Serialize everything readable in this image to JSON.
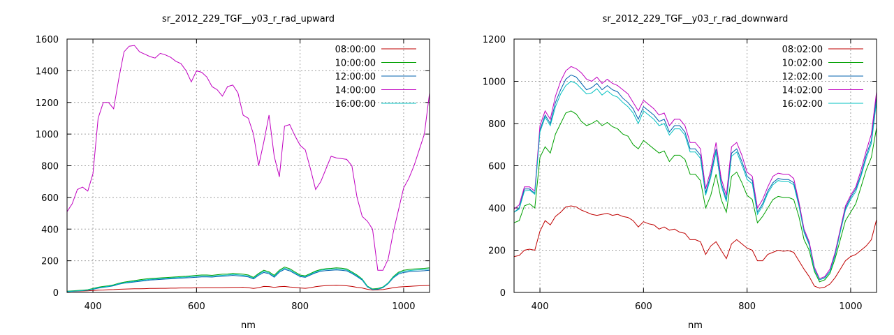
{
  "chart_data": [
    {
      "type": "line",
      "title": "sr_2012_229_TGF__y03_r_rad_upward",
      "xlabel": "nm",
      "ylabel": "",
      "xlim": [
        350,
        1050
      ],
      "ylim": [
        0,
        1600
      ],
      "xticks": [
        400,
        600,
        800,
        1000
      ],
      "yticks": [
        0,
        200,
        400,
        600,
        800,
        1000,
        1200,
        1400,
        1600
      ],
      "grid": true,
      "legend_position": "top-right",
      "x": [
        350,
        360,
        370,
        380,
        390,
        400,
        410,
        420,
        430,
        440,
        450,
        460,
        470,
        480,
        490,
        500,
        510,
        520,
        530,
        540,
        550,
        560,
        570,
        580,
        590,
        600,
        610,
        620,
        630,
        640,
        650,
        660,
        670,
        680,
        690,
        700,
        710,
        720,
        730,
        740,
        750,
        760,
        770,
        780,
        790,
        800,
        810,
        820,
        830,
        840,
        850,
        860,
        870,
        880,
        890,
        900,
        910,
        920,
        930,
        940,
        950,
        960,
        970,
        980,
        990,
        1000,
        1010,
        1020,
        1030,
        1040,
        1050
      ],
      "series": [
        {
          "name": "08:00:00",
          "color": "#bf0000",
          "values": [
            5,
            7,
            8,
            9,
            10,
            12,
            14,
            15,
            17,
            18,
            20,
            21,
            22,
            23,
            23,
            24,
            25,
            25,
            26,
            26,
            27,
            27,
            28,
            28,
            28,
            29,
            29,
            30,
            30,
            30,
            30,
            31,
            32,
            32,
            33,
            30,
            25,
            30,
            38,
            37,
            32,
            36,
            38,
            34,
            32,
            28,
            26,
            30,
            36,
            40,
            43,
            44,
            45,
            44,
            42,
            38,
            32,
            28,
            20,
            15,
            16,
            18,
            24,
            30,
            34,
            36,
            38,
            40,
            42,
            43,
            44
          ]
        },
        {
          "name": "10:00:00",
          "color": "#00a000",
          "values": [
            8,
            10,
            12,
            14,
            17,
            25,
            33,
            38,
            42,
            48,
            58,
            65,
            70,
            75,
            80,
            84,
            88,
            90,
            92,
            94,
            96,
            98,
            100,
            102,
            105,
            108,
            110,
            110,
            108,
            112,
            115,
            116,
            120,
            118,
            115,
            110,
            95,
            120,
            140,
            130,
            108,
            140,
            160,
            150,
            130,
            110,
            105,
            120,
            135,
            145,
            150,
            152,
            155,
            153,
            148,
            130,
            110,
            85,
            40,
            22,
            25,
            35,
            60,
            100,
            128,
            140,
            145,
            148,
            150,
            152,
            155
          ]
        },
        {
          "name": "12:00:00",
          "color": "#0060ad",
          "values": [
            5,
            7,
            9,
            11,
            14,
            20,
            27,
            32,
            36,
            42,
            52,
            58,
            62,
            66,
            70,
            74,
            78,
            80,
            82,
            84,
            86,
            88,
            90,
            92,
            94,
            96,
            98,
            98,
            97,
            100,
            102,
            104,
            108,
            105,
            102,
            98,
            85,
            108,
            126,
            118,
            96,
            128,
            146,
            136,
            118,
            100,
            95,
            110,
            124,
            134,
            138,
            140,
            142,
            140,
            136,
            120,
            100,
            78,
            35,
            18,
            20,
            30,
            55,
            92,
            116,
            126,
            130,
            133,
            135,
            137,
            140
          ]
        },
        {
          "name": "14:00:00",
          "color": "#c000c0",
          "values": [
            510,
            560,
            650,
            665,
            640,
            750,
            1100,
            1200,
            1200,
            1160,
            1350,
            1520,
            1555,
            1560,
            1520,
            1505,
            1490,
            1480,
            1510,
            1500,
            1485,
            1460,
            1445,
            1400,
            1330,
            1400,
            1390,
            1360,
            1300,
            1280,
            1240,
            1300,
            1310,
            1260,
            1120,
            1100,
            1000,
            800,
            950,
            1120,
            860,
            730,
            1050,
            1060,
            990,
            930,
            900,
            780,
            650,
            700,
            780,
            860,
            850,
            845,
            840,
            800,
            600,
            480,
            450,
            400,
            140,
            140,
            210,
            380,
            520,
            660,
            720,
            800,
            900,
            1000,
            1260
          ]
        },
        {
          "name": "16:00:00",
          "color": "#00c0c0",
          "values": [
            6,
            8,
            10,
            12,
            15,
            22,
            30,
            35,
            39,
            45,
            55,
            61,
            66,
            70,
            75,
            79,
            83,
            85,
            87,
            89,
            91,
            93,
            95,
            97,
            100,
            102,
            104,
            104,
            102,
            106,
            108,
            110,
            114,
            111,
            108,
            104,
            90,
            114,
            133,
            124,
            102,
            134,
            153,
            143,
            124,
            105,
            100,
            115,
            130,
            140,
            145,
            147,
            149,
            147,
            142,
            125,
            105,
            82,
            38,
            20,
            22,
            32,
            58,
            96,
            122,
            133,
            138,
            141,
            143,
            145,
            148
          ]
        }
      ]
    },
    {
      "type": "line",
      "title": "sr_2012_229_TGF__y03_r_rad_downward",
      "xlabel": "nm",
      "ylabel": "",
      "xlim": [
        350,
        1050
      ],
      "ylim": [
        0,
        1200
      ],
      "xticks": [
        400,
        600,
        800,
        1000
      ],
      "yticks": [
        0,
        200,
        400,
        600,
        800,
        1000,
        1200
      ],
      "grid": true,
      "legend_position": "top-right",
      "x": [
        350,
        360,
        370,
        380,
        390,
        400,
        410,
        420,
        430,
        440,
        450,
        460,
        470,
        480,
        490,
        500,
        510,
        520,
        530,
        540,
        550,
        560,
        570,
        580,
        590,
        600,
        610,
        620,
        630,
        640,
        650,
        660,
        670,
        680,
        690,
        700,
        710,
        720,
        730,
        740,
        750,
        760,
        770,
        780,
        790,
        800,
        810,
        820,
        830,
        840,
        850,
        860,
        870,
        880,
        890,
        900,
        910,
        920,
        930,
        940,
        950,
        960,
        970,
        980,
        990,
        1000,
        1010,
        1020,
        1030,
        1040,
        1050
      ],
      "series": [
        {
          "name": "08:02:00",
          "color": "#bf0000",
          "values": [
            170,
            175,
            200,
            205,
            200,
            290,
            340,
            320,
            360,
            380,
            405,
            410,
            405,
            390,
            380,
            370,
            365,
            370,
            375,
            365,
            370,
            360,
            355,
            340,
            310,
            335,
            325,
            320,
            300,
            310,
            295,
            300,
            285,
            280,
            250,
            250,
            240,
            180,
            220,
            240,
            200,
            160,
            230,
            250,
            230,
            210,
            200,
            150,
            150,
            180,
            190,
            200,
            195,
            198,
            190,
            150,
            110,
            75,
            30,
            20,
            25,
            40,
            70,
            110,
            150,
            170,
            180,
            200,
            220,
            250,
            345
          ]
        },
        {
          "name": "10:02:00",
          "color": "#00a000",
          "values": [
            330,
            340,
            410,
            420,
            400,
            640,
            690,
            660,
            750,
            800,
            850,
            860,
            845,
            810,
            790,
            800,
            815,
            790,
            805,
            785,
            775,
            750,
            740,
            700,
            680,
            720,
            700,
            680,
            660,
            670,
            620,
            650,
            650,
            630,
            560,
            560,
            530,
            400,
            460,
            560,
            440,
            380,
            550,
            570,
            520,
            460,
            440,
            330,
            360,
            400,
            440,
            455,
            450,
            450,
            440,
            360,
            250,
            200,
            100,
            50,
            60,
            90,
            160,
            250,
            340,
            380,
            420,
            500,
            580,
            640,
            780
          ]
        },
        {
          "name": "12:02:00",
          "color": "#0060ad",
          "values": [
            380,
            400,
            490,
            490,
            470,
            770,
            840,
            800,
            900,
            960,
            1010,
            1030,
            1020,
            990,
            960,
            970,
            990,
            960,
            980,
            960,
            950,
            920,
            900,
            870,
            820,
            880,
            860,
            840,
            810,
            820,
            760,
            790,
            790,
            760,
            680,
            680,
            650,
            470,
            560,
            680,
            520,
            440,
            660,
            680,
            620,
            550,
            530,
            380,
            420,
            480,
            520,
            540,
            535,
            535,
            520,
            420,
            290,
            230,
            110,
            60,
            70,
            100,
            180,
            290,
            400,
            450,
            490,
            560,
            650,
            720,
            930
          ]
        },
        {
          "name": "14:02:00",
          "color": "#c000c0",
          "values": [
            395,
            415,
            500,
            500,
            480,
            790,
            860,
            820,
            930,
            1000,
            1050,
            1070,
            1060,
            1040,
            1010,
            1000,
            1020,
            990,
            1010,
            990,
            980,
            960,
            940,
            900,
            860,
            910,
            890,
            870,
            840,
            850,
            790,
            820,
            820,
            790,
            710,
            710,
            680,
            490,
            580,
            710,
            540,
            460,
            690,
            710,
            650,
            570,
            550,
            400,
            440,
            500,
            550,
            565,
            560,
            560,
            540,
            430,
            300,
            240,
            120,
            65,
            75,
            110,
            190,
            300,
            410,
            460,
            500,
            580,
            670,
            750,
            950
          ]
        },
        {
          "name": "16:02:00",
          "color": "#00c0c0",
          "values": [
            380,
            395,
            480,
            485,
            465,
            760,
            830,
            790,
            880,
            940,
            980,
            1000,
            990,
            965,
            940,
            945,
            965,
            935,
            955,
            935,
            925,
            900,
            880,
            850,
            800,
            860,
            840,
            820,
            790,
            800,
            745,
            775,
            775,
            745,
            665,
            665,
            635,
            460,
            545,
            665,
            505,
            430,
            645,
            665,
            605,
            535,
            515,
            370,
            410,
            470,
            510,
            530,
            525,
            525,
            510,
            410,
            285,
            225,
            108,
            60,
            68,
            98,
            175,
            285,
            390,
            440,
            478,
            550,
            635,
            705,
            905
          ]
        }
      ]
    }
  ]
}
